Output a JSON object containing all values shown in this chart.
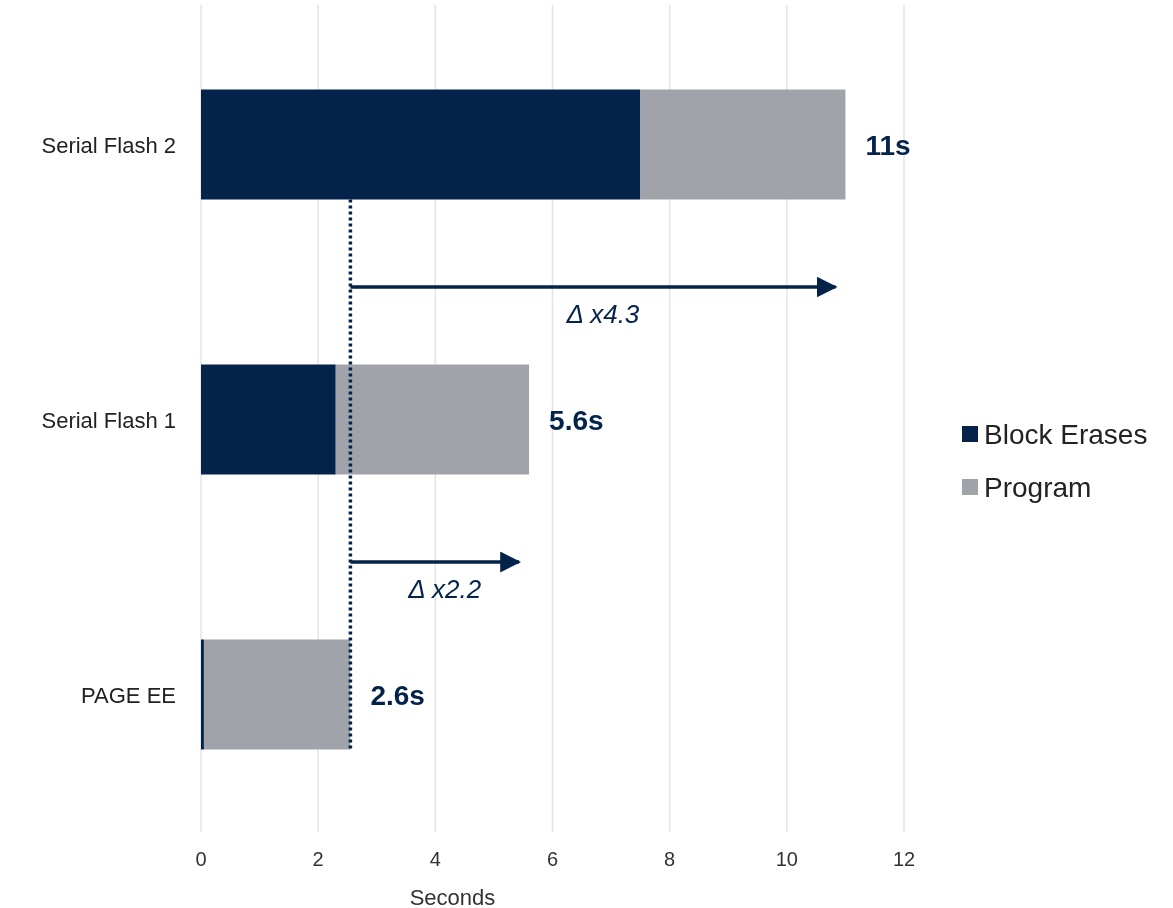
{
  "chart_data": {
    "type": "bar",
    "orientation": "horizontal",
    "stacked": true,
    "xlabel": "Seconds",
    "categories": [
      "Serial Flash 2",
      "Serial Flash 1",
      "PAGE EE"
    ],
    "series": [
      {
        "name": "Block Erases",
        "color": "#04234a",
        "values": [
          7.5,
          2.3,
          0.05
        ]
      },
      {
        "name": "Program",
        "color": "#a0a3a9",
        "values": [
          3.5,
          3.3,
          2.5
        ]
      }
    ],
    "xlim": [
      0,
      12
    ],
    "xticks": [
      0,
      2,
      4,
      6,
      8,
      10,
      12
    ],
    "grid": "x",
    "legend": "right",
    "totals": [
      "11s",
      "5.6s",
      "2.6s"
    ],
    "ref_lines": [
      {
        "axis": "x",
        "value": 2.55,
        "color": "#04234a",
        "line_style": "dotted"
      }
    ],
    "annotations": [
      "Δ x4.3",
      "Δ x2.2"
    ]
  }
}
